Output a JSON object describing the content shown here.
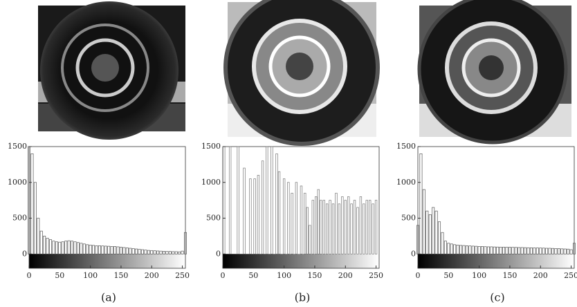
{
  "chart_data": [
    {
      "type": "bar",
      "caption": "(a)",
      "color": "#555555",
      "x": [
        0,
        5,
        10,
        15,
        20,
        25,
        30,
        35,
        40,
        45,
        50,
        55,
        60,
        65,
        70,
        75,
        80,
        85,
        90,
        95,
        100,
        105,
        110,
        115,
        120,
        125,
        130,
        135,
        140,
        145,
        150,
        155,
        160,
        165,
        170,
        175,
        180,
        185,
        190,
        195,
        200,
        205,
        210,
        215,
        220,
        225,
        230,
        235,
        240,
        245,
        250,
        255
      ],
      "values": [
        1500,
        1400,
        1000,
        500,
        320,
        250,
        220,
        200,
        180,
        170,
        165,
        170,
        180,
        185,
        180,
        170,
        160,
        150,
        140,
        130,
        125,
        120,
        115,
        115,
        112,
        110,
        108,
        105,
        105,
        100,
        95,
        90,
        85,
        80,
        75,
        70,
        65,
        60,
        55,
        50,
        48,
        45,
        42,
        40,
        38,
        36,
        35,
        33,
        32,
        30,
        40,
        300
      ],
      "xlim": [
        0,
        255
      ],
      "ylim": [
        -200,
        1500
      ],
      "xticks": [
        0,
        50,
        100,
        150,
        200,
        250
      ],
      "yticks": [
        0,
        500,
        1000,
        1500
      ]
    },
    {
      "type": "bar",
      "caption": "(b)",
      "color": "#777777",
      "x": [
        2,
        12,
        25,
        35,
        45,
        52,
        58,
        65,
        72,
        80,
        88,
        92,
        100,
        107,
        113,
        120,
        128,
        134,
        138,
        142,
        147,
        152,
        156,
        160,
        165,
        170,
        175,
        180,
        185,
        190,
        195,
        200,
        205,
        210,
        215,
        220,
        225,
        230,
        235,
        240,
        245,
        250
      ],
      "values": [
        1500,
        1500,
        1500,
        1200,
        1050,
        1050,
        1100,
        1300,
        1500,
        1500,
        1400,
        1150,
        1050,
        1000,
        850,
        1000,
        950,
        850,
        650,
        400,
        750,
        800,
        900,
        750,
        750,
        700,
        750,
        700,
        850,
        700,
        800,
        750,
        800,
        700,
        750,
        650,
        800,
        700,
        750,
        750,
        700,
        750
      ],
      "xlim": [
        0,
        255
      ],
      "ylim": [
        -200,
        1500
      ],
      "xticks": [
        0,
        50,
        100,
        150,
        200,
        250
      ],
      "yticks": [
        0,
        500,
        1000,
        1500
      ]
    },
    {
      "type": "bar",
      "caption": "(c)",
      "color": "#555555",
      "x": [
        0,
        5,
        10,
        15,
        20,
        25,
        30,
        35,
        40,
        45,
        50,
        55,
        60,
        65,
        70,
        75,
        80,
        85,
        90,
        95,
        100,
        105,
        110,
        115,
        120,
        125,
        130,
        135,
        140,
        145,
        150,
        155,
        160,
        165,
        170,
        175,
        180,
        185,
        190,
        195,
        200,
        205,
        210,
        215,
        220,
        225,
        230,
        235,
        240,
        245,
        250,
        255
      ],
      "values": [
        400,
        1400,
        900,
        600,
        550,
        650,
        600,
        450,
        300,
        180,
        150,
        140,
        130,
        125,
        120,
        118,
        115,
        112,
        110,
        108,
        105,
        105,
        102,
        100,
        100,
        98,
        97,
        96,
        95,
        95,
        94,
        93,
        92,
        90,
        90,
        88,
        87,
        86,
        85,
        84,
        83,
        82,
        80,
        80,
        78,
        76,
        75,
        72,
        70,
        68,
        60,
        150
      ],
      "xlim": [
        0,
        255
      ],
      "ylim": [
        -200,
        1500
      ],
      "xticks": [
        0,
        50,
        100,
        150,
        200,
        250
      ],
      "yticks": [
        0,
        500,
        1000,
        1500
      ]
    }
  ]
}
